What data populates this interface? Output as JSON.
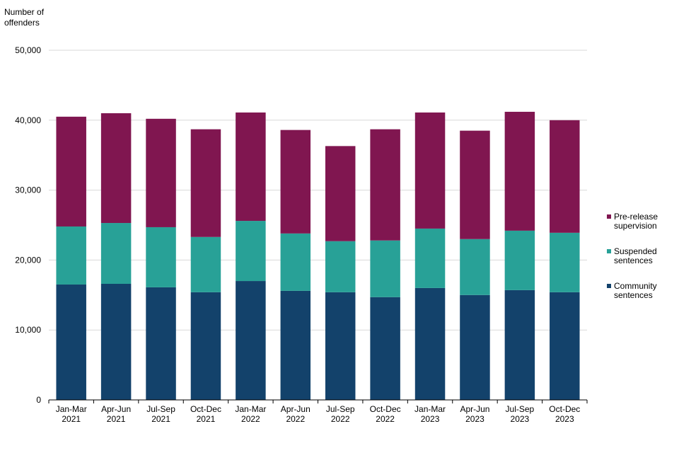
{
  "chart_data": {
    "type": "bar",
    "stacked": true,
    "ylabel": "Number of offenders",
    "ylim": [
      0,
      50000
    ],
    "yticks": [
      "0",
      "10,000",
      "20,000",
      "30,000",
      "40,000",
      "50,000"
    ],
    "ytick_values": [
      0,
      10000,
      20000,
      30000,
      40000,
      50000
    ],
    "grid": true,
    "legend_position": "right",
    "categories": [
      [
        "Jan-Mar",
        "2021"
      ],
      [
        "Apr-Jun",
        "2021"
      ],
      [
        "Jul-Sep",
        "2021"
      ],
      [
        "Oct-Dec",
        "2021"
      ],
      [
        "Jan-Mar",
        "2022"
      ],
      [
        "Apr-Jun",
        "2022"
      ],
      [
        "Jul-Sep",
        "2022"
      ],
      [
        "Oct-Dec",
        "2022"
      ],
      [
        "Jan-Mar",
        "2023"
      ],
      [
        "Apr-Jun",
        "2023"
      ],
      [
        "Jul-Sep",
        "2023"
      ],
      [
        "Oct-Dec",
        "2023"
      ]
    ],
    "series": [
      {
        "name": "Community sentences",
        "legend_lines": [
          "Community",
          "sentences"
        ],
        "color": "#13426b",
        "values": [
          16500,
          16600,
          16100,
          15400,
          17000,
          15600,
          15400,
          14700,
          16000,
          15000,
          15700,
          15400
        ]
      },
      {
        "name": "Suspended sentences",
        "legend_lines": [
          "Suspended",
          "sentences"
        ],
        "color": "#28a197",
        "values": [
          8300,
          8700,
          8600,
          7900,
          8600,
          8200,
          7300,
          8100,
          8500,
          8000,
          8500,
          8500
        ]
      },
      {
        "name": "Pre-release supervision",
        "legend_lines": [
          "Pre-release",
          "supervision"
        ],
        "color": "#801650",
        "values": [
          15700,
          15700,
          15500,
          15400,
          15500,
          14800,
          13600,
          15900,
          16600,
          15500,
          17000,
          16100
        ]
      }
    ]
  }
}
